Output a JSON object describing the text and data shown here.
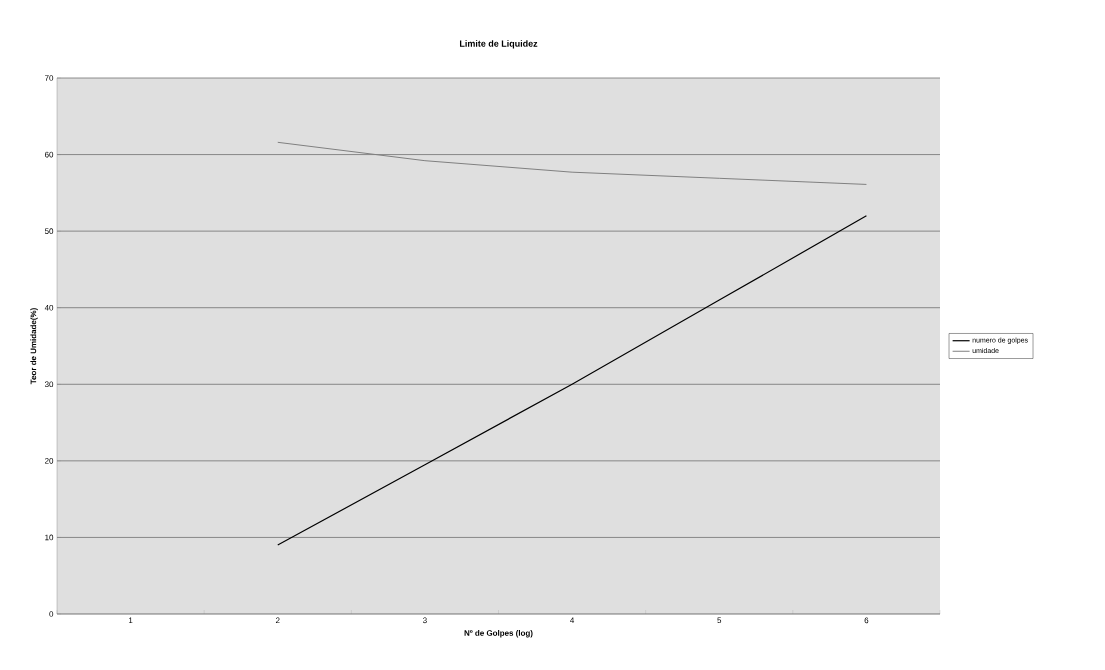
{
  "chart_data": {
    "type": "line",
    "title": "Limite de Liquidez",
    "xlabel": "Nº de Golpes (log)",
    "ylabel": "Teor de Umidade(%)",
    "categories": [
      "1",
      "2",
      "3",
      "4",
      "5",
      "6"
    ],
    "series": [
      {
        "name": "numero de golpes",
        "color": "#000000",
        "values": [
          null,
          9,
          19.5,
          30,
          41,
          52
        ]
      },
      {
        "name": "umidade",
        "color": "#808080",
        "values": [
          null,
          61.6,
          59.2,
          57.7,
          56.9,
          56.1
        ]
      }
    ],
    "ylim": [
      0,
      70
    ],
    "yticks": [
      0,
      10,
      20,
      30,
      40,
      50,
      60,
      70
    ],
    "grid": "y",
    "legend": "right",
    "marker": "none",
    "line_style": "solid"
  }
}
